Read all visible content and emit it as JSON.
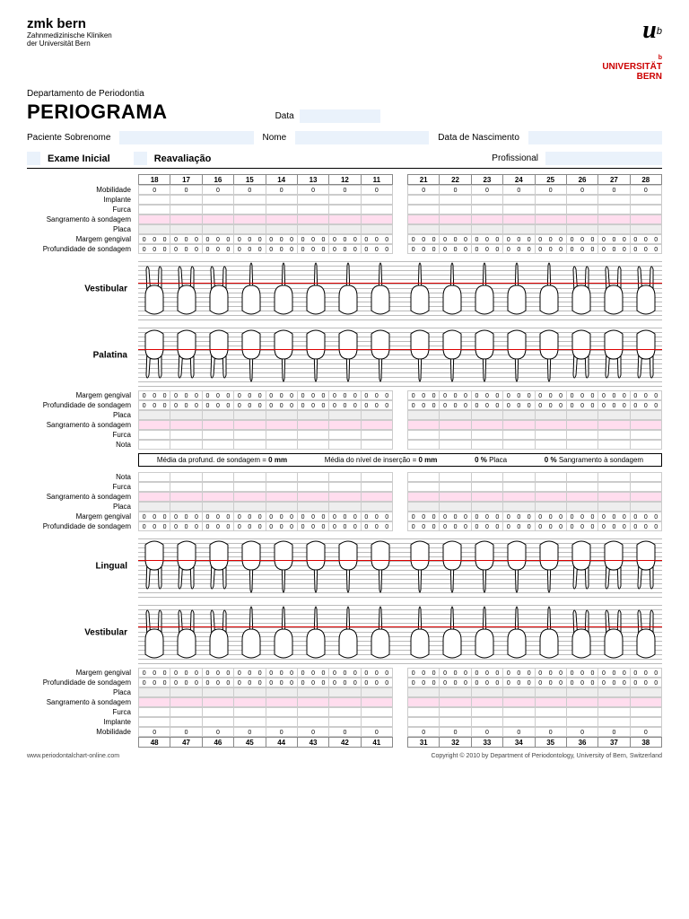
{
  "org": {
    "name": "zmk bern",
    "sub1": "Zahnmedizinische Kliniken",
    "sub2": "der Universität Bern"
  },
  "logo": {
    "u": "u",
    "b": "b",
    "sup": "b",
    "uni1": "UNIVERSITÄT",
    "uni2": "BERN"
  },
  "dept": "Departamento de Periodontia",
  "title": "PERIOGRAMA",
  "labels": {
    "data": "Data",
    "paciente": "Paciente Sobrenome",
    "nome": "Nome",
    "nascimento": "Data de Nascimento",
    "exame": "Exame Inicial",
    "reav": "Reavaliação",
    "prof": "Profissional"
  },
  "rows": [
    "Mobilidade",
    "Implante",
    "Furca",
    "Sangramento à sondagem",
    "Placa",
    "Margem gengival",
    "Profundidade de sondagem"
  ],
  "rows2": [
    "Margem gengival",
    "Profundidade de sondagem",
    "Placa",
    "Sangramento à sondagem",
    "Furca",
    "Nota"
  ],
  "rows3": [
    "Nota",
    "Furca",
    "Sangramento à sondagem",
    "Placa",
    "Margem gengival",
    "Profundidade de sondagem"
  ],
  "rows4": [
    "Margem gengival",
    "Profundidade de sondagem",
    "Placa",
    "Sangramento à sondagem",
    "Furca",
    "Implante",
    "Mobilidade"
  ],
  "upperL": [
    "18",
    "17",
    "16",
    "15",
    "14",
    "13",
    "12",
    "11"
  ],
  "upperR": [
    "21",
    "22",
    "23",
    "24",
    "25",
    "26",
    "27",
    "28"
  ],
  "lowerL": [
    "48",
    "47",
    "46",
    "45",
    "44",
    "43",
    "42",
    "41"
  ],
  "lowerR": [
    "31",
    "32",
    "33",
    "34",
    "35",
    "36",
    "37",
    "38"
  ],
  "views": {
    "vest": "Vestibular",
    "pal": "Palatina",
    "ling": "Lingual"
  },
  "stats": {
    "s1": "Média da profund. de sondagem =",
    "v1": "0 mm",
    "s2": "Média do nível de inserção =",
    "v2": "0 mm",
    "s3": "0 %",
    "l3": "Placa",
    "s4": "0 %",
    "l4": "Sangramento à sondagem"
  },
  "footer": {
    "url": "www.periodontalchart-online.com",
    "copy": "Copyright © 2010 by Department of Periodontology, University of Bern, Switzerland"
  },
  "colors": {
    "input": "#eaf2fb",
    "red": "#cc0000"
  }
}
